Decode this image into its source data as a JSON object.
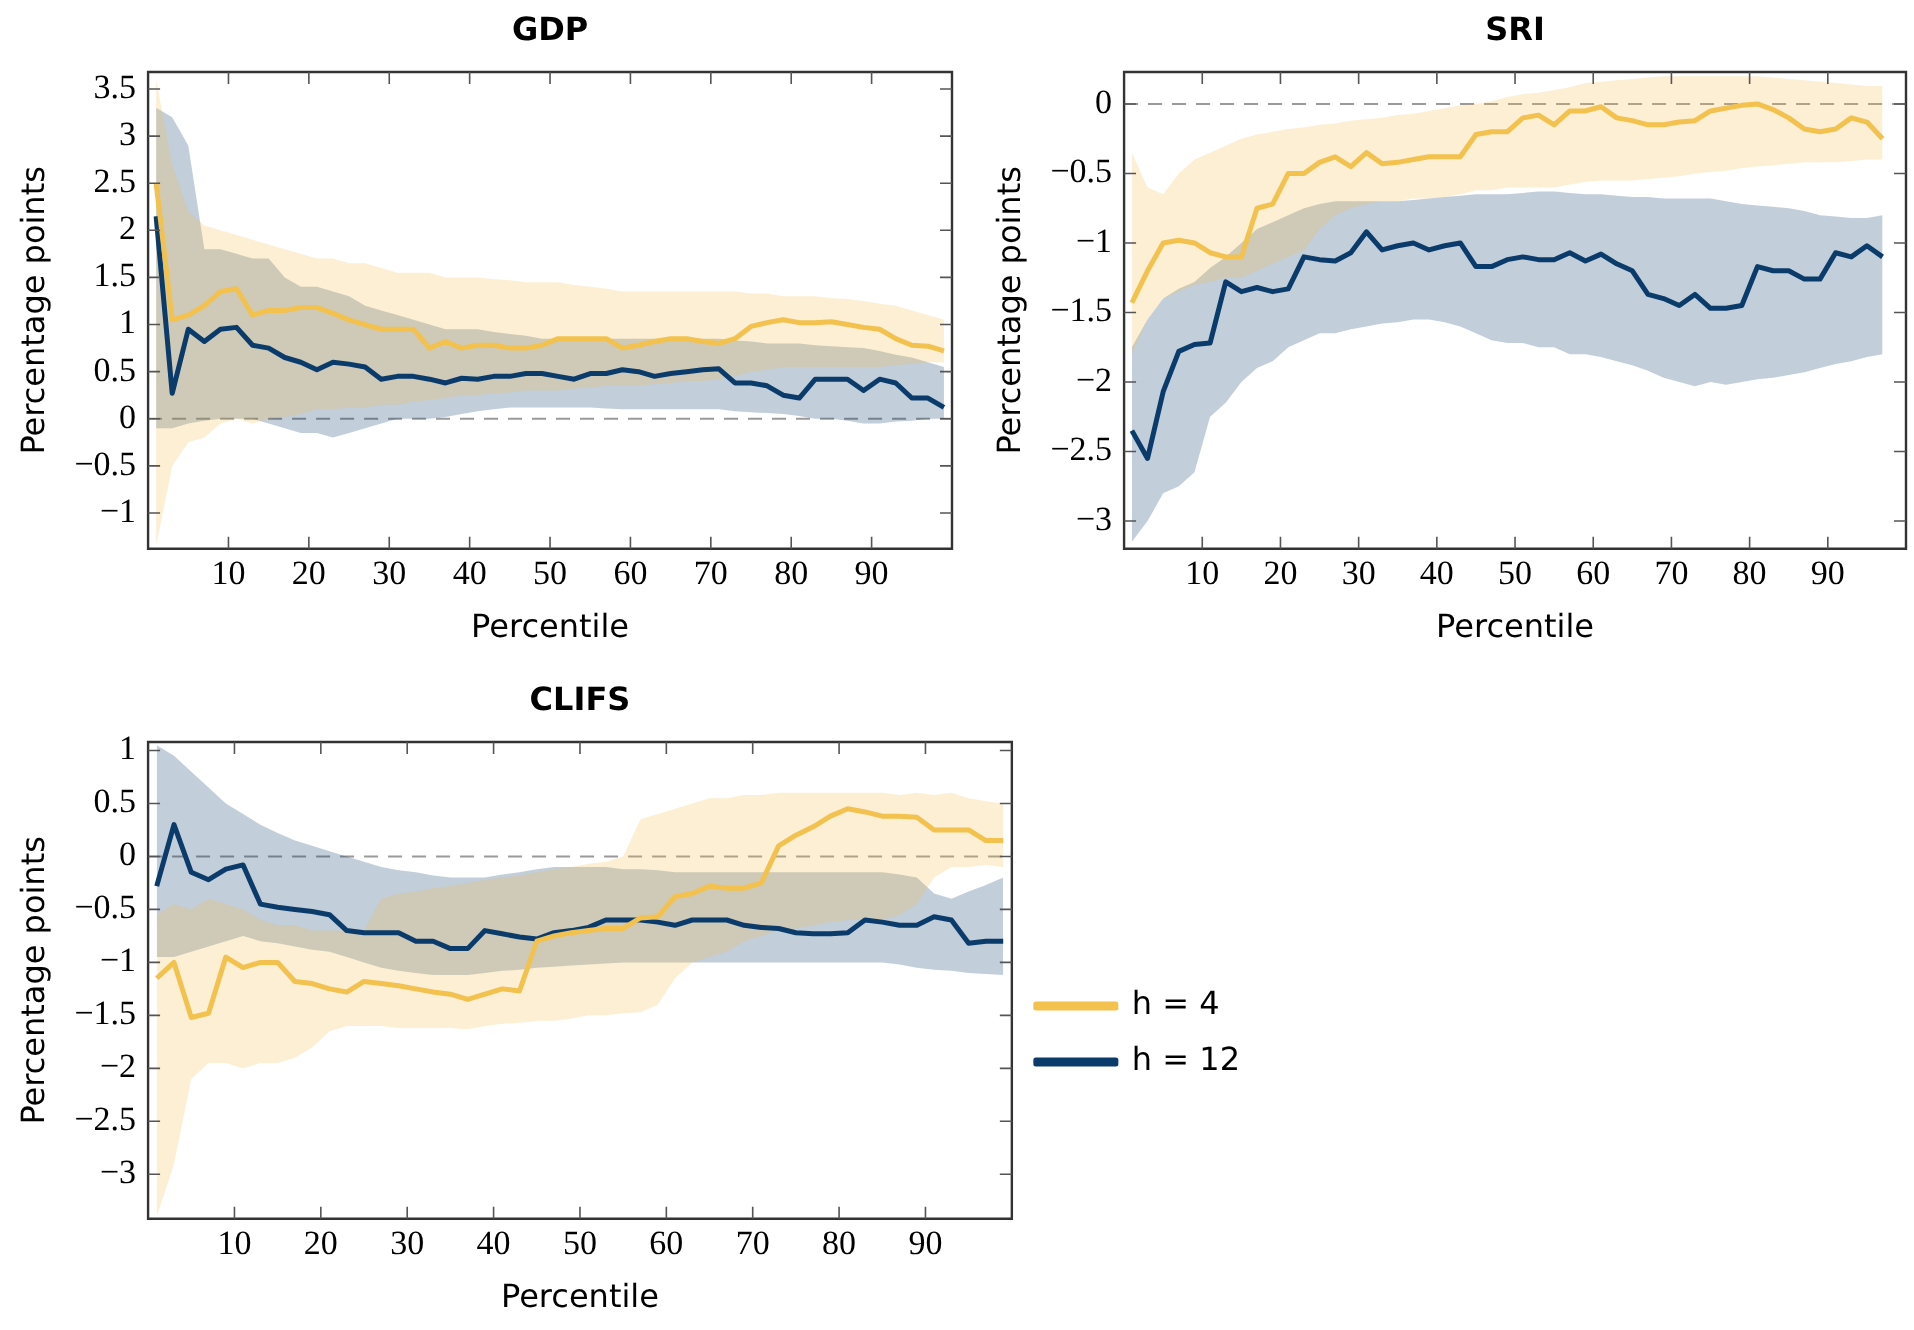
{
  "chart_data": [
    {
      "type": "line",
      "title": "GDP",
      "xlabel": "Percentile",
      "ylabel": "Percentage points",
      "xlim": [
        0,
        100
      ],
      "xticks": [
        10,
        20,
        30,
        40,
        50,
        60,
        70,
        80,
        90
      ],
      "ylim": [
        -1.38,
        3.68
      ],
      "yticks": [
        -1,
        -0.5,
        0,
        0.5,
        1,
        1.5,
        2,
        2.5,
        3,
        3.5
      ],
      "grid": false,
      "legend": false,
      "marker": "none",
      "line_style": "solid",
      "ref_lines": [
        {
          "axis": "y",
          "value": 0,
          "color": "#999999",
          "line_style": "dashed"
        }
      ],
      "x": [
        1,
        3,
        5,
        7,
        9,
        11,
        13,
        15,
        17,
        19,
        21,
        23,
        25,
        27,
        29,
        31,
        33,
        35,
        37,
        39,
        41,
        43,
        45,
        47,
        49,
        51,
        53,
        55,
        57,
        59,
        61,
        63,
        65,
        67,
        69,
        71,
        73,
        75,
        77,
        79,
        81,
        83,
        85,
        87,
        89,
        91,
        93,
        95,
        97,
        99
      ],
      "series": [
        {
          "color": "#f2c14e",
          "values": [
            2.5,
            1.05,
            1.1,
            1.2,
            1.35,
            1.38,
            1.1,
            1.15,
            1.15,
            1.18,
            1.18,
            1.12,
            1.05,
            1.0,
            0.95,
            0.95,
            0.95,
            0.75,
            0.82,
            0.75,
            0.78,
            0.78,
            0.75,
            0.75,
            0.78,
            0.85,
            0.85,
            0.85,
            0.85,
            0.75,
            0.78,
            0.82,
            0.85,
            0.85,
            0.82,
            0.8,
            0.85,
            0.98,
            1.02,
            1.05,
            1.02,
            1.02,
            1.03,
            1.0,
            0.97,
            0.95,
            0.85,
            0.78,
            0.77,
            0.72
          ],
          "upper": [
            3.6,
            2.7,
            2.2,
            2.05,
            2.0,
            1.95,
            1.9,
            1.85,
            1.8,
            1.75,
            1.7,
            1.7,
            1.65,
            1.65,
            1.6,
            1.55,
            1.55,
            1.55,
            1.5,
            1.5,
            1.5,
            1.48,
            1.47,
            1.45,
            1.45,
            1.45,
            1.42,
            1.4,
            1.38,
            1.35,
            1.35,
            1.35,
            1.35,
            1.35,
            1.35,
            1.35,
            1.35,
            1.33,
            1.33,
            1.3,
            1.3,
            1.3,
            1.28,
            1.27,
            1.25,
            1.22,
            1.2,
            1.15,
            1.1,
            1.05
          ],
          "lower": [
            -1.35,
            -0.5,
            -0.25,
            -0.2,
            -0.05,
            0.0,
            -0.05,
            0.0,
            0.02,
            0.05,
            0.1,
            0.1,
            0.12,
            0.12,
            0.15,
            0.15,
            0.18,
            0.2,
            0.22,
            0.25,
            0.25,
            0.27,
            0.28,
            0.3,
            0.3,
            0.3,
            0.32,
            0.33,
            0.35,
            0.35,
            0.35,
            0.37,
            0.38,
            0.4,
            0.4,
            0.42,
            0.45,
            0.5,
            0.52,
            0.55,
            0.55,
            0.55,
            0.55,
            0.55,
            0.55,
            0.55,
            0.57,
            0.58,
            0.6,
            0.6
          ]
        },
        {
          "color": "#0b3b6b",
          "values": [
            2.15,
            0.27,
            0.95,
            0.82,
            0.95,
            0.97,
            0.78,
            0.75,
            0.65,
            0.6,
            0.52,
            0.6,
            0.58,
            0.55,
            0.42,
            0.45,
            0.45,
            0.42,
            0.38,
            0.43,
            0.42,
            0.45,
            0.45,
            0.48,
            0.48,
            0.45,
            0.42,
            0.48,
            0.48,
            0.52,
            0.5,
            0.45,
            0.48,
            0.5,
            0.52,
            0.53,
            0.38,
            0.38,
            0.35,
            0.25,
            0.22,
            0.42,
            0.42,
            0.42,
            0.3,
            0.42,
            0.38,
            0.22,
            0.22,
            0.12
          ],
          "upper": [
            3.3,
            3.2,
            2.9,
            1.8,
            1.8,
            1.75,
            1.7,
            1.7,
            1.5,
            1.4,
            1.4,
            1.35,
            1.3,
            1.2,
            1.15,
            1.1,
            1.05,
            1.0,
            0.95,
            0.95,
            0.95,
            0.92,
            0.9,
            0.88,
            0.85,
            0.85,
            0.85,
            0.85,
            0.85,
            0.85,
            0.85,
            0.85,
            0.85,
            0.85,
            0.85,
            0.85,
            0.83,
            0.82,
            0.8,
            0.8,
            0.8,
            0.78,
            0.77,
            0.76,
            0.75,
            0.72,
            0.68,
            0.65,
            0.6,
            0.55
          ],
          "lower": [
            -0.1,
            -0.1,
            -0.05,
            -0.02,
            0.0,
            0.0,
            0.0,
            -0.05,
            -0.1,
            -0.15,
            -0.15,
            -0.2,
            -0.15,
            -0.1,
            -0.05,
            0.0,
            0.0,
            0.0,
            0.02,
            0.05,
            0.08,
            0.1,
            0.12,
            0.12,
            0.12,
            0.12,
            0.12,
            0.12,
            0.11,
            0.1,
            0.1,
            0.1,
            0.1,
            0.1,
            0.1,
            0.1,
            0.08,
            0.07,
            0.06,
            0.05,
            0.03,
            0.0,
            0.0,
            -0.02,
            -0.05,
            -0.05,
            -0.03,
            -0.02,
            0.0,
            0.0
          ]
        }
      ]
    },
    {
      "type": "line",
      "title": "SRI",
      "xlabel": "Percentile",
      "ylabel": "Percentage points",
      "xlim": [
        0,
        100
      ],
      "xticks": [
        10,
        20,
        30,
        40,
        50,
        60,
        70,
        80,
        90
      ],
      "ylim": [
        -3.2,
        0.23
      ],
      "yticks": [
        -3,
        -2.5,
        -2,
        -1.5,
        -1,
        -0.5,
        0
      ],
      "grid": false,
      "legend": false,
      "marker": "none",
      "line_style": "solid",
      "ref_lines": [
        {
          "axis": "y",
          "value": 0,
          "color": "#999999",
          "line_style": "dashed"
        }
      ],
      "x": [
        1,
        3,
        5,
        7,
        9,
        11,
        13,
        15,
        17,
        19,
        21,
        23,
        25,
        27,
        29,
        31,
        33,
        35,
        37,
        39,
        41,
        43,
        45,
        47,
        49,
        51,
        53,
        55,
        57,
        59,
        61,
        63,
        65,
        67,
        69,
        71,
        73,
        75,
        77,
        79,
        81,
        83,
        85,
        87,
        89,
        91,
        93,
        95,
        97
      ],
      "series": [
        {
          "color": "#f2c14e",
          "values": [
            -1.43,
            -1.2,
            -1.0,
            -0.98,
            -1.0,
            -1.07,
            -1.1,
            -1.1,
            -0.75,
            -0.72,
            -0.5,
            -0.5,
            -0.42,
            -0.38,
            -0.45,
            -0.35,
            -0.43,
            -0.42,
            -0.4,
            -0.38,
            -0.38,
            -0.38,
            -0.22,
            -0.2,
            -0.2,
            -0.1,
            -0.08,
            -0.15,
            -0.05,
            -0.05,
            -0.02,
            -0.1,
            -0.12,
            -0.15,
            -0.15,
            -0.13,
            -0.12,
            -0.05,
            -0.03,
            -0.01,
            0.0,
            -0.04,
            -0.1,
            -0.18,
            -0.2,
            -0.18,
            -0.1,
            -0.13,
            -0.25
          ],
          "upper": [
            -0.35,
            -0.6,
            -0.65,
            -0.5,
            -0.4,
            -0.35,
            -0.3,
            -0.25,
            -0.22,
            -0.2,
            -0.18,
            -0.17,
            -0.15,
            -0.14,
            -0.12,
            -0.11,
            -0.1,
            -0.08,
            -0.07,
            -0.05,
            -0.03,
            -0.01,
            0.0,
            0.02,
            0.05,
            0.07,
            0.08,
            0.1,
            0.12,
            0.15,
            0.16,
            0.17,
            0.18,
            0.19,
            0.2,
            0.2,
            0.2,
            0.2,
            0.2,
            0.2,
            0.2,
            0.19,
            0.18,
            0.17,
            0.16,
            0.15,
            0.14,
            0.13,
            0.13
          ],
          "lower": [
            -1.8,
            -1.55,
            -1.4,
            -1.35,
            -1.3,
            -1.28,
            -1.25,
            -1.25,
            -1.2,
            -1.15,
            -1.1,
            -1.05,
            -0.9,
            -0.8,
            -0.75,
            -0.72,
            -0.7,
            -0.7,
            -0.68,
            -0.68,
            -0.67,
            -0.65,
            -0.62,
            -0.62,
            -0.6,
            -0.6,
            -0.6,
            -0.6,
            -0.58,
            -0.56,
            -0.55,
            -0.55,
            -0.55,
            -0.54,
            -0.53,
            -0.52,
            -0.5,
            -0.49,
            -0.48,
            -0.46,
            -0.45,
            -0.44,
            -0.43,
            -0.42,
            -0.42,
            -0.42,
            -0.41,
            -0.4,
            -0.4
          ]
        },
        {
          "color": "#0b3b6b",
          "values": [
            -2.35,
            -2.55,
            -2.07,
            -1.78,
            -1.73,
            -1.72,
            -1.28,
            -1.35,
            -1.32,
            -1.35,
            -1.33,
            -1.1,
            -1.12,
            -1.13,
            -1.07,
            -0.92,
            -1.05,
            -1.02,
            -1.0,
            -1.05,
            -1.02,
            -1.0,
            -1.17,
            -1.17,
            -1.12,
            -1.1,
            -1.12,
            -1.12,
            -1.07,
            -1.13,
            -1.08,
            -1.15,
            -1.2,
            -1.37,
            -1.4,
            -1.45,
            -1.37,
            -1.47,
            -1.47,
            -1.45,
            -1.17,
            -1.2,
            -1.2,
            -1.26,
            -1.26,
            -1.07,
            -1.1,
            -1.02,
            -1.1
          ],
          "upper": [
            -1.75,
            -1.55,
            -1.4,
            -1.33,
            -1.28,
            -1.18,
            -1.1,
            -1.0,
            -0.9,
            -0.85,
            -0.8,
            -0.75,
            -0.72,
            -0.7,
            -0.7,
            -0.7,
            -0.7,
            -0.7,
            -0.69,
            -0.68,
            -0.67,
            -0.66,
            -0.65,
            -0.65,
            -0.65,
            -0.64,
            -0.63,
            -0.63,
            -0.64,
            -0.65,
            -0.65,
            -0.66,
            -0.67,
            -0.67,
            -0.68,
            -0.68,
            -0.68,
            -0.68,
            -0.7,
            -0.72,
            -0.73,
            -0.74,
            -0.75,
            -0.77,
            -0.8,
            -0.81,
            -0.82,
            -0.82,
            -0.8
          ],
          "lower": [
            -3.15,
            -3.0,
            -2.8,
            -2.75,
            -2.65,
            -2.25,
            -2.15,
            -2.0,
            -1.9,
            -1.85,
            -1.75,
            -1.7,
            -1.65,
            -1.65,
            -1.62,
            -1.6,
            -1.58,
            -1.57,
            -1.55,
            -1.55,
            -1.57,
            -1.6,
            -1.65,
            -1.7,
            -1.72,
            -1.72,
            -1.75,
            -1.75,
            -1.8,
            -1.8,
            -1.82,
            -1.85,
            -1.88,
            -1.92,
            -1.97,
            -2.0,
            -2.03,
            -2.0,
            -2.02,
            -2.0,
            -1.98,
            -1.97,
            -1.95,
            -1.93,
            -1.9,
            -1.87,
            -1.85,
            -1.82,
            -1.8
          ]
        }
      ]
    },
    {
      "type": "line",
      "title": "CLIFS",
      "xlabel": "Percentile",
      "ylabel": "Percentage points",
      "xlim": [
        0,
        100
      ],
      "xticks": [
        10,
        20,
        30,
        40,
        50,
        60,
        70,
        80,
        90
      ],
      "ylim": [
        -3.42,
        1.08
      ],
      "yticks": [
        -3,
        -2.5,
        -2,
        -1.5,
        -1,
        -0.5,
        0,
        0.5,
        1
      ],
      "grid": false,
      "legend": "right",
      "marker": "none",
      "line_style": "solid",
      "ref_lines": [
        {
          "axis": "y",
          "value": 0,
          "color": "#999999",
          "line_style": "dashed"
        }
      ],
      "x": [
        1,
        3,
        5,
        7,
        9,
        11,
        13,
        15,
        17,
        19,
        21,
        23,
        25,
        27,
        29,
        31,
        33,
        35,
        37,
        39,
        41,
        43,
        45,
        47,
        49,
        51,
        53,
        55,
        57,
        59,
        61,
        63,
        65,
        67,
        69,
        71,
        73,
        75,
        77,
        79,
        81,
        83,
        85,
        87,
        89,
        91,
        93,
        95,
        97,
        99
      ],
      "series": [
        {
          "name": "h = 4",
          "color": "#f2c14e",
          "values": [
            -1.15,
            -1.0,
            -1.52,
            -1.48,
            -0.95,
            -1.05,
            -1.0,
            -1.0,
            -1.18,
            -1.2,
            -1.25,
            -1.28,
            -1.18,
            -1.2,
            -1.22,
            -1.25,
            -1.28,
            -1.3,
            -1.35,
            -1.3,
            -1.25,
            -1.27,
            -0.8,
            -0.75,
            -0.72,
            -0.7,
            -0.68,
            -0.68,
            -0.58,
            -0.57,
            -0.38,
            -0.35,
            -0.28,
            -0.3,
            -0.3,
            -0.25,
            0.1,
            0.2,
            0.28,
            0.38,
            0.45,
            0.42,
            0.38,
            0.38,
            0.37,
            0.25,
            0.25,
            0.25,
            0.15,
            0.15
          ],
          "upper": [
            -0.55,
            -0.45,
            -0.5,
            -0.4,
            -0.45,
            -0.5,
            -0.6,
            -0.65,
            -0.65,
            -0.7,
            -0.7,
            -0.7,
            -0.7,
            -0.4,
            -0.35,
            -0.33,
            -0.3,
            -0.28,
            -0.25,
            -0.22,
            -0.2,
            -0.18,
            -0.15,
            -0.12,
            -0.1,
            -0.07,
            -0.05,
            0.0,
            0.35,
            0.4,
            0.45,
            0.5,
            0.55,
            0.55,
            0.58,
            0.58,
            0.6,
            0.6,
            0.6,
            0.6,
            0.6,
            0.6,
            0.6,
            0.58,
            0.6,
            0.58,
            0.6,
            0.55,
            0.52,
            0.5
          ],
          "lower": [
            -3.4,
            -2.9,
            -2.1,
            -1.95,
            -1.95,
            -2.0,
            -1.95,
            -1.95,
            -1.9,
            -1.8,
            -1.65,
            -1.6,
            -1.6,
            -1.6,
            -1.62,
            -1.62,
            -1.62,
            -1.62,
            -1.63,
            -1.6,
            -1.58,
            -1.57,
            -1.55,
            -1.55,
            -1.53,
            -1.5,
            -1.5,
            -1.48,
            -1.47,
            -1.4,
            -1.15,
            -1.0,
            -0.95,
            -0.9,
            -0.8,
            -0.75,
            -0.7,
            -0.68,
            -0.65,
            -0.62,
            -0.6,
            -0.6,
            -0.6,
            -0.55,
            -0.45,
            -0.2,
            -0.1,
            -0.1,
            -0.08,
            -0.1
          ]
        },
        {
          "name": "h = 12",
          "color": "#0b3b6b",
          "values": [
            -0.28,
            0.3,
            -0.15,
            -0.22,
            -0.12,
            -0.08,
            -0.45,
            -0.48,
            -0.5,
            -0.52,
            -0.55,
            -0.7,
            -0.72,
            -0.72,
            -0.72,
            -0.8,
            -0.8,
            -0.87,
            -0.87,
            -0.7,
            -0.73,
            -0.76,
            -0.78,
            -0.72,
            -0.7,
            -0.67,
            -0.6,
            -0.6,
            -0.6,
            -0.62,
            -0.65,
            -0.6,
            -0.6,
            -0.6,
            -0.65,
            -0.67,
            -0.68,
            -0.72,
            -0.73,
            -0.73,
            -0.72,
            -0.6,
            -0.62,
            -0.65,
            -0.65,
            -0.57,
            -0.6,
            -0.82,
            -0.8,
            -0.8
          ],
          "upper": [
            1.05,
            0.95,
            0.8,
            0.65,
            0.5,
            0.4,
            0.3,
            0.22,
            0.15,
            0.1,
            0.05,
            0.0,
            -0.05,
            -0.1,
            -0.13,
            -0.15,
            -0.18,
            -0.2,
            -0.2,
            -0.2,
            -0.17,
            -0.15,
            -0.12,
            -0.1,
            -0.1,
            -0.1,
            -0.1,
            -0.12,
            -0.12,
            -0.13,
            -0.15,
            -0.15,
            -0.15,
            -0.15,
            -0.15,
            -0.15,
            -0.15,
            -0.15,
            -0.15,
            -0.15,
            -0.15,
            -0.15,
            -0.15,
            -0.17,
            -0.2,
            -0.35,
            -0.4,
            -0.33,
            -0.27,
            -0.2
          ],
          "lower": [
            -0.95,
            -0.95,
            -0.9,
            -0.85,
            -0.8,
            -0.75,
            -0.8,
            -0.82,
            -0.85,
            -0.88,
            -0.9,
            -0.95,
            -1.0,
            -1.05,
            -1.08,
            -1.1,
            -1.12,
            -1.12,
            -1.12,
            -1.1,
            -1.08,
            -1.07,
            -1.05,
            -1.04,
            -1.03,
            -1.02,
            -1.01,
            -1.0,
            -1.0,
            -1.0,
            -1.0,
            -1.0,
            -1.0,
            -1.0,
            -1.0,
            -1.0,
            -1.0,
            -1.0,
            -1.0,
            -1.0,
            -1.0,
            -1.0,
            -1.0,
            -1.02,
            -1.05,
            -1.07,
            -1.08,
            -1.1,
            -1.11,
            -1.12
          ]
        }
      ]
    }
  ]
}
